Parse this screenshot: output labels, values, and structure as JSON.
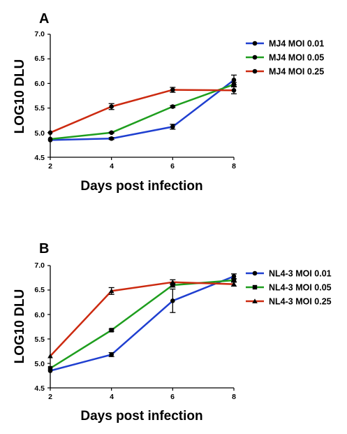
{
  "chart_data": [
    {
      "panel": "A",
      "type": "line",
      "xlabel": "Days post infection",
      "ylabel": "LOG10 DLU",
      "x": [
        2,
        4,
        6,
        8
      ],
      "xlim": [
        2,
        8
      ],
      "ylim": [
        4.5,
        7.0
      ],
      "xticks": [
        "2",
        "4",
        "6",
        "8"
      ],
      "yticks": [
        "4.5",
        "5.0",
        "5.5",
        "6.0",
        "6.5",
        "7.0"
      ],
      "grid": false,
      "legend_position": "right",
      "series": [
        {
          "name": "MJ4 MOI 0.01",
          "color": "#1f3fd0",
          "marker": "circle",
          "values": [
            4.85,
            4.88,
            5.12,
            6.07
          ],
          "errors": [
            0,
            0.02,
            0.05,
            0.1
          ]
        },
        {
          "name": "MJ4 MOI 0.05",
          "color": "#1e9e1e",
          "marker": "circle",
          "values": [
            4.87,
            5.0,
            5.53,
            5.98
          ],
          "errors": [
            0,
            0.01,
            0.02,
            0.04
          ]
        },
        {
          "name": "MJ4 MOI 0.25",
          "color": "#cc2a10",
          "marker": "circle",
          "values": [
            5.0,
            5.53,
            5.87,
            5.86
          ],
          "errors": [
            0,
            0.06,
            0.05,
            0.07
          ]
        }
      ]
    },
    {
      "panel": "B",
      "type": "line",
      "xlabel": "Days post infection",
      "ylabel": "LOG10 DLU",
      "x": [
        2,
        4,
        6,
        8
      ],
      "xlim": [
        2,
        8
      ],
      "ylim": [
        4.5,
        7.0
      ],
      "xticks": [
        "2",
        "4",
        "6",
        "8"
      ],
      "yticks": [
        "4.5",
        "5.0",
        "5.5",
        "6.0",
        "6.5",
        "7.0"
      ],
      "grid": false,
      "legend_position": "right",
      "series": [
        {
          "name": "NL4-3 MOI 0.01",
          "color": "#1f3fd0",
          "marker": "circle",
          "values": [
            4.85,
            5.18,
            6.28,
            6.78
          ],
          "errors": [
            0,
            0.04,
            0.24,
            0.05
          ]
        },
        {
          "name": "NL4-3 MOI 0.05",
          "color": "#1e9e1e",
          "marker": "square",
          "values": [
            4.9,
            5.68,
            6.6,
            6.7
          ],
          "errors": [
            0,
            0.02,
            0.04,
            0.03
          ]
        },
        {
          "name": "NL4-3 MOI 0.25",
          "color": "#cc2a10",
          "marker": "triangle",
          "values": [
            5.15,
            6.48,
            6.66,
            6.62
          ],
          "errors": [
            0,
            0.07,
            0.05,
            0.04
          ]
        }
      ]
    }
  ]
}
